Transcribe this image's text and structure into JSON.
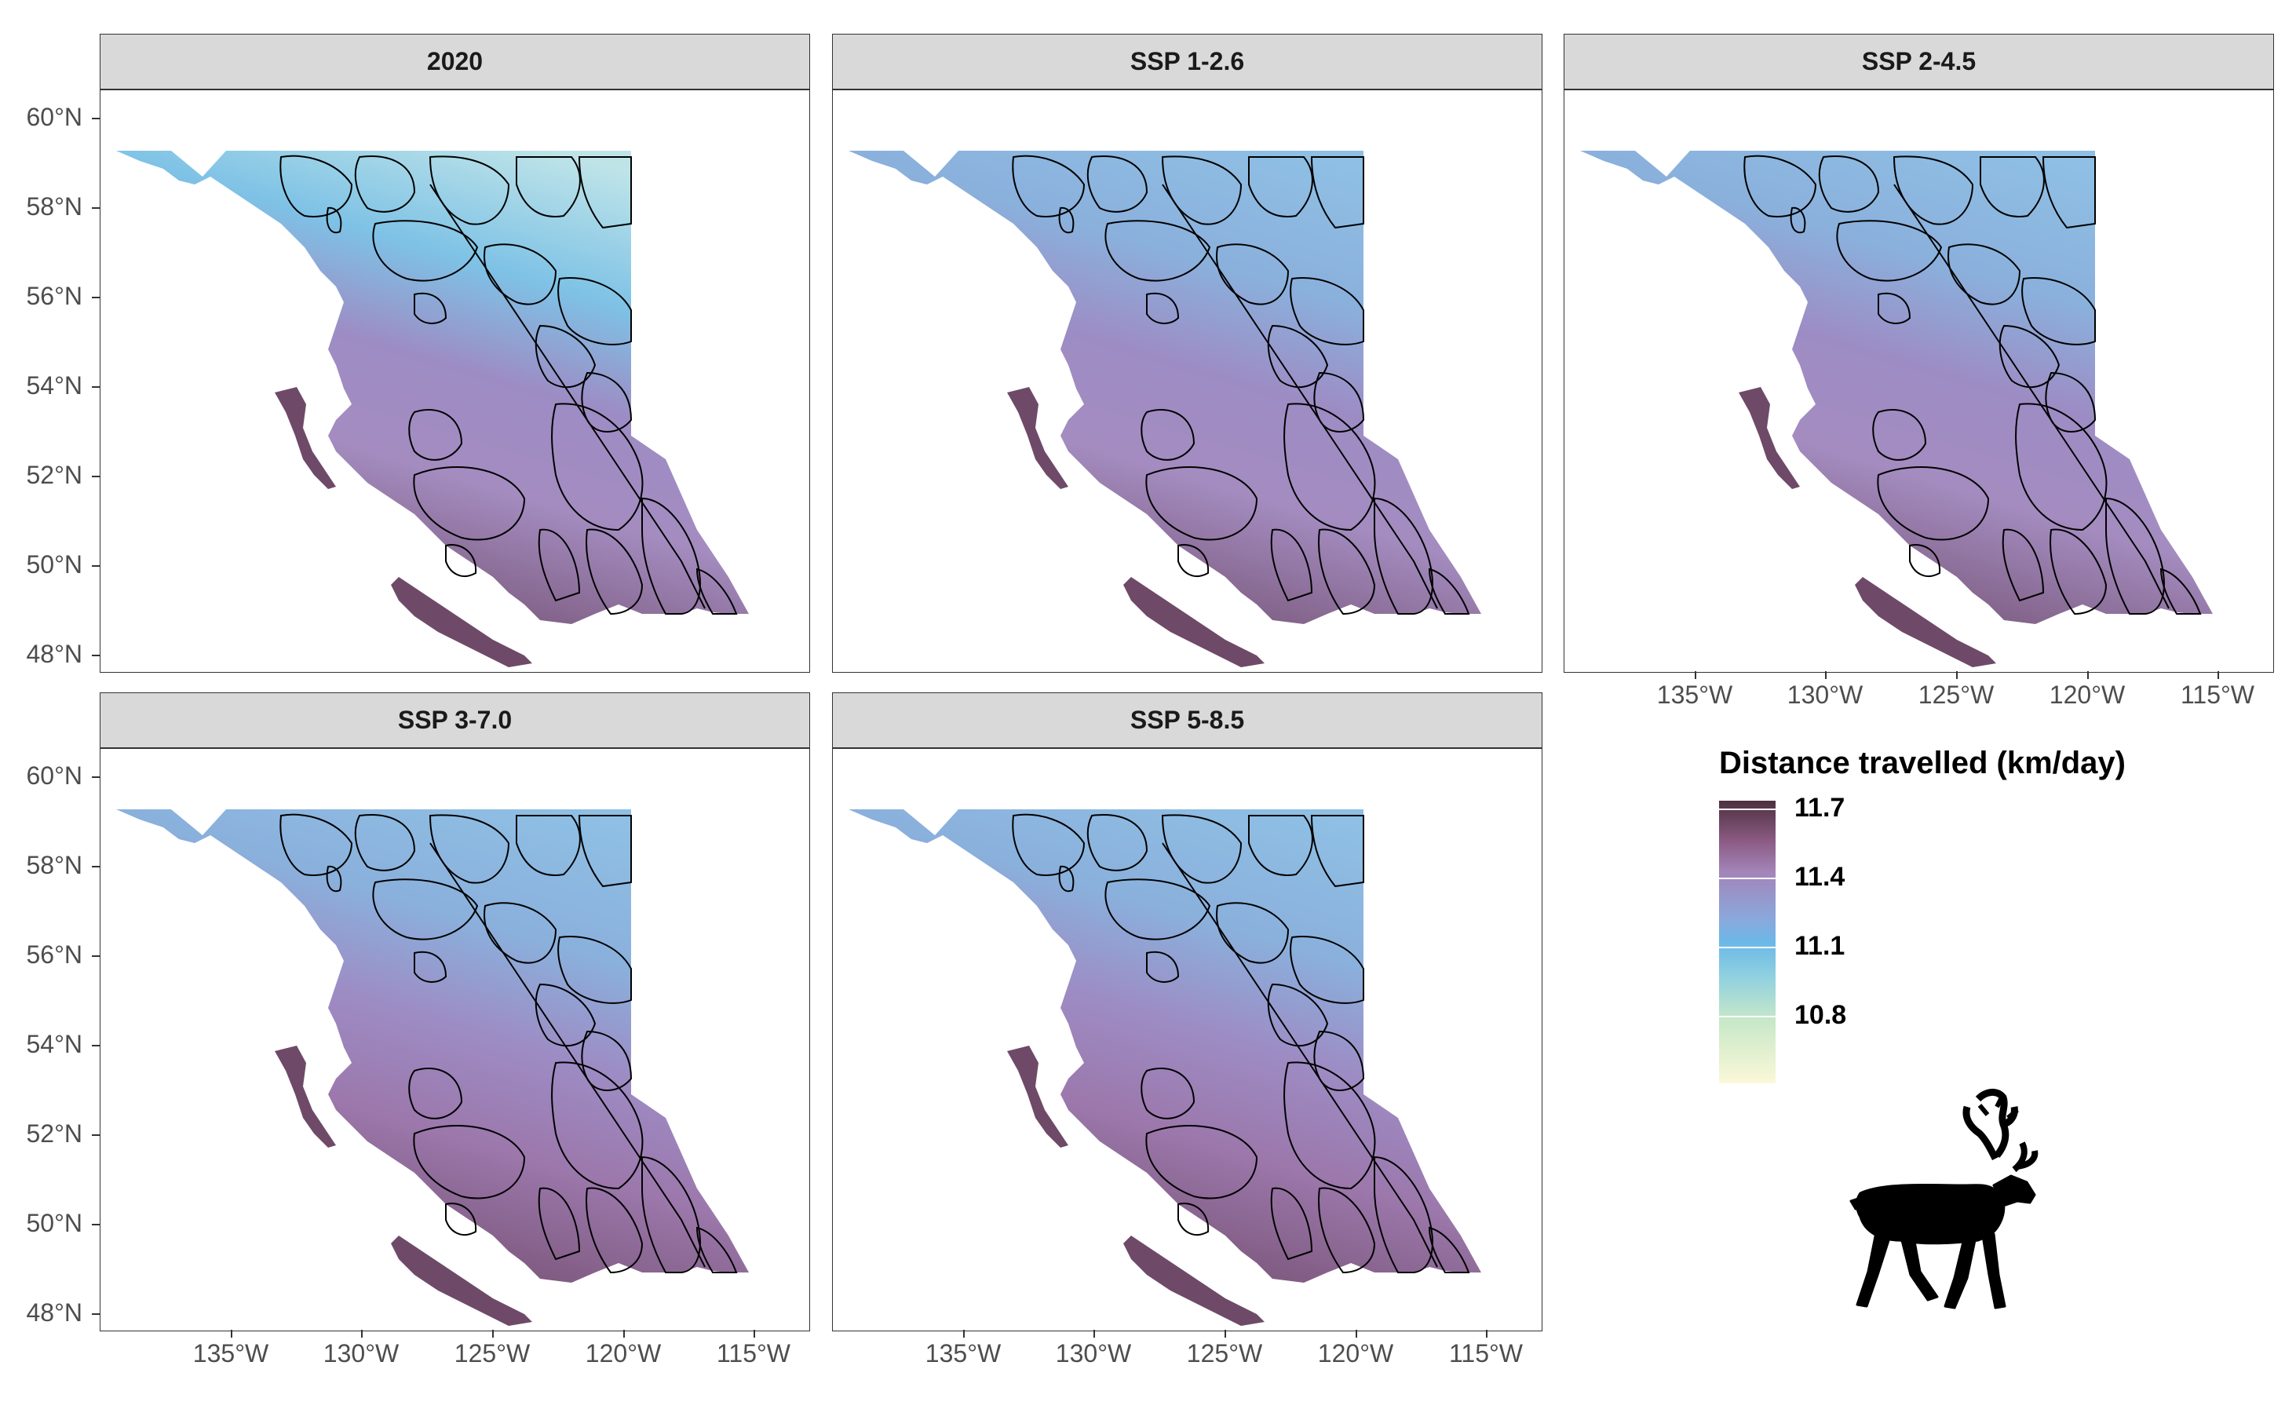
{
  "panels": [
    {
      "title": "2020",
      "scenario": "2020"
    },
    {
      "title": "SSP 1-2.6",
      "scenario": "ssp126"
    },
    {
      "title": "SSP 2-4.5",
      "scenario": "ssp245"
    },
    {
      "title": "SSP 3-7.0",
      "scenario": "ssp370"
    },
    {
      "title": "SSP 5-8.5",
      "scenario": "ssp585"
    }
  ],
  "y_axis": {
    "ticks": [
      "60°N",
      "58°N",
      "56°N",
      "54°N",
      "52°N",
      "50°N",
      "48°N"
    ]
  },
  "x_axis": {
    "ticks": [
      "135°W",
      "130°W",
      "125°W",
      "120°W",
      "115°W"
    ]
  },
  "legend": {
    "title": "Distance travelled (km/day)",
    "labels": [
      "11.7",
      "11.4",
      "11.1",
      "10.8"
    ],
    "colors": [
      "#4d3040",
      "#a384b8",
      "#6bb8e8",
      "#fbf8d8"
    ]
  },
  "icon": "caribou-silhouette-icon",
  "colors": {
    "strip_bg": "#d9d9d9",
    "land_light": "#6bb8e8",
    "land_dark": "#8a5a82",
    "outline": "#000000"
  }
}
